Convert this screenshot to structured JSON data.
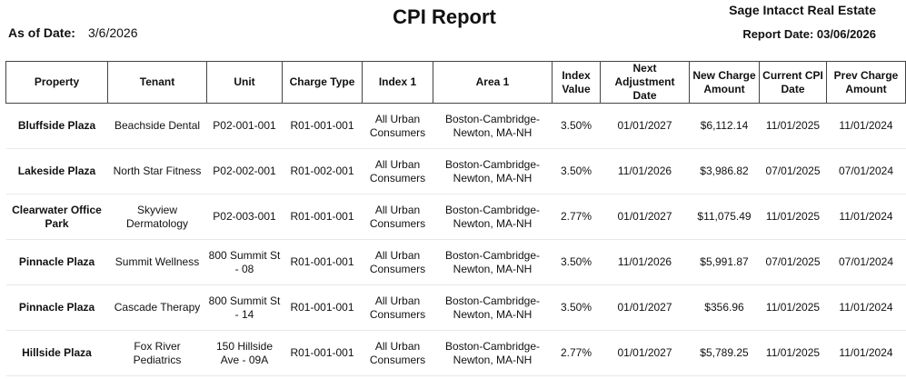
{
  "header": {
    "as_of_label": "As of Date:",
    "as_of_value": "3/6/2026",
    "title": "CPI Report",
    "company": "Sage Intacct Real Estate",
    "report_date": "Report Date: 03/06/2026"
  },
  "columns": [
    "Property",
    "Tenant",
    "Unit",
    "Charge Type",
    "Index 1",
    "Area 1",
    "Index Value",
    "Next Adjustment Date",
    "New Charge Amount",
    "Current CPI Date",
    "Prev Charge Amount"
  ],
  "rows": [
    [
      "Bluffside Plaza",
      "Beachside Dental",
      "P02-001-001",
      "R01-001-001",
      "All Urban Consumers",
      "Boston-Cambridge-Newton, MA-NH",
      "3.50%",
      "01/01/2027",
      "$6,112.14",
      "11/01/2025",
      "11/01/2024"
    ],
    [
      "Lakeside Plaza",
      "North Star Fitness",
      "P02-002-001",
      "R01-002-001",
      "All Urban Consumers",
      "Boston-Cambridge-Newton, MA-NH",
      "3.50%",
      "11/01/2026",
      "$3,986.82",
      "07/01/2025",
      "07/01/2024"
    ],
    [
      "Clearwater Office Park",
      "Skyview Dermatology",
      "P02-003-001",
      "R01-001-001",
      "All Urban Consumers",
      "Boston-Cambridge-Newton, MA-NH",
      "2.77%",
      "01/01/2027",
      "$11,075.49",
      "11/01/2025",
      "11/01/2024"
    ],
    [
      "Pinnacle Plaza",
      "Summit Wellness",
      "800 Summit St - 08",
      "R01-001-001",
      "All Urban Consumers",
      "Boston-Cambridge-Newton, MA-NH",
      "3.50%",
      "11/01/2026",
      "$5,991.87",
      "07/01/2025",
      "07/01/2024"
    ],
    [
      "Pinnacle Plaza",
      "Cascade Therapy",
      "800 Summit St - 14",
      "R01-001-001",
      "All Urban Consumers",
      "Boston-Cambridge-Newton, MA-NH",
      "3.50%",
      "01/01/2027",
      "$356.96",
      "11/01/2025",
      "11/01/2024"
    ],
    [
      "Hillside Plaza",
      "Fox River Pediatrics",
      "150 Hillside Ave - 09A",
      "R01-001-001",
      "All Urban Consumers",
      "Boston-Cambridge-Newton, MA-NH",
      "2.77%",
      "01/01/2027",
      "$5,789.25",
      "11/01/2025",
      "11/01/2024"
    ]
  ]
}
